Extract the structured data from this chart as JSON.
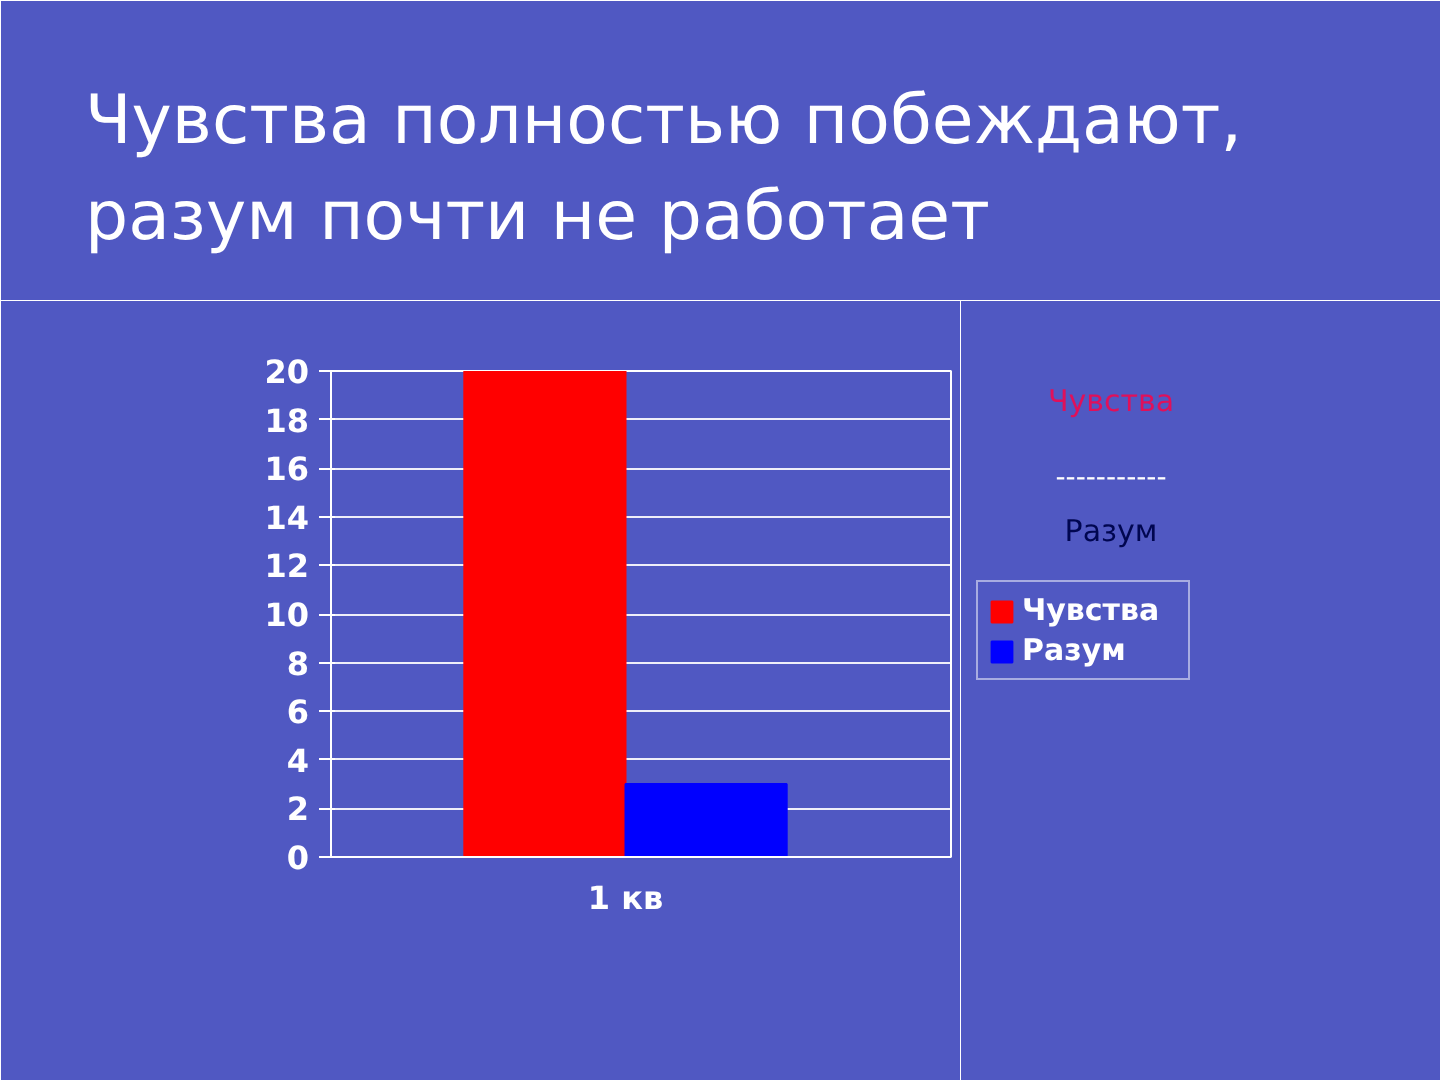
{
  "chart_data": {
    "type": "bar",
    "title": "Чувства полностью побеждают, разум почти не работает",
    "categories": [
      "1 кв"
    ],
    "series": [
      {
        "name": "Чувства",
        "color": "#ff0000",
        "values": [
          20
        ]
      },
      {
        "name": "Разум",
        "color": "#0000ff",
        "values": [
          3
        ]
      }
    ],
    "ylim": [
      0,
      20
    ],
    "yticks": [
      0,
      2,
      4,
      6,
      8,
      10,
      12,
      14,
      16,
      18,
      20
    ],
    "grid": "y",
    "legend": "right",
    "annotations": [
      "Чувства",
      "-----------",
      "Разум"
    ]
  }
}
